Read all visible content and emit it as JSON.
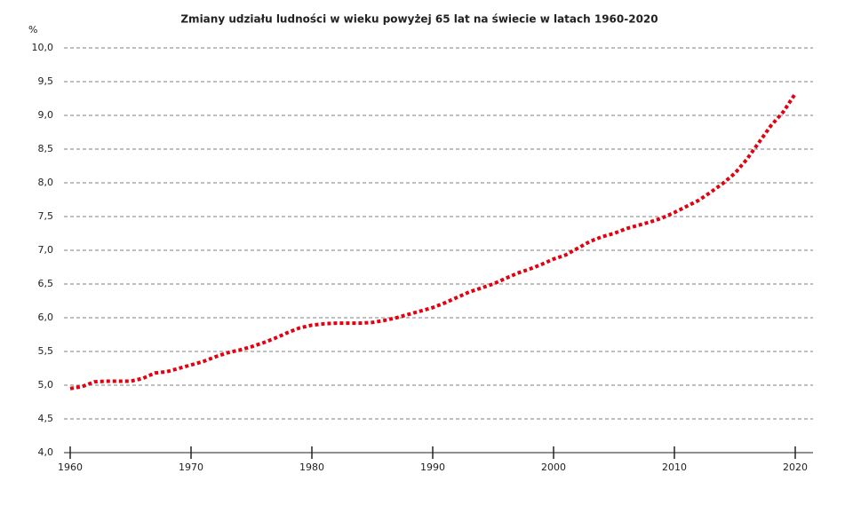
{
  "chart_data": {
    "type": "line",
    "title": "Zmiany udziału ludności w wieku powyżej 65 lat na świecie w latach 1960-2020",
    "y_label": "%",
    "x": [
      1960,
      1961,
      1962,
      1963,
      1964,
      1965,
      1966,
      1967,
      1968,
      1969,
      1970,
      1971,
      1972,
      1973,
      1974,
      1975,
      1976,
      1977,
      1978,
      1979,
      1980,
      1981,
      1982,
      1983,
      1984,
      1985,
      1986,
      1987,
      1988,
      1989,
      1990,
      1991,
      1992,
      1993,
      1994,
      1995,
      1996,
      1997,
      1998,
      1999,
      2000,
      2001,
      2002,
      2003,
      2004,
      2005,
      2006,
      2007,
      2008,
      2009,
      2010,
      2011,
      2012,
      2013,
      2014,
      2015,
      2016,
      2017,
      2018,
      2019,
      2020
    ],
    "series": [
      {
        "color": "#e3000f",
        "values": [
          4.95,
          4.98,
          5.05,
          5.06,
          5.06,
          5.06,
          5.1,
          5.18,
          5.2,
          5.25,
          5.3,
          5.35,
          5.42,
          5.48,
          5.52,
          5.57,
          5.63,
          5.7,
          5.78,
          5.85,
          5.89,
          5.91,
          5.92,
          5.92,
          5.92,
          5.93,
          5.96,
          6.0,
          6.05,
          6.1,
          6.15,
          6.22,
          6.3,
          6.38,
          6.44,
          6.5,
          6.58,
          6.66,
          6.72,
          6.79,
          6.87,
          6.93,
          7.03,
          7.13,
          7.2,
          7.25,
          7.32,
          7.37,
          7.42,
          7.48,
          7.56,
          7.65,
          7.74,
          7.86,
          7.99,
          8.14,
          8.35,
          8.6,
          8.85,
          9.05,
          9.32
        ]
      }
    ],
    "xlim": [
      1960,
      2020
    ],
    "xticks": [
      1960,
      1970,
      1980,
      1990,
      2000,
      2010,
      2020
    ],
    "ylim": [
      4,
      10
    ],
    "yticks": [
      {
        "value": 4,
        "label": "4,0"
      },
      {
        "value": 4.5,
        "label": "4,5"
      },
      {
        "value": 5,
        "label": "5,0"
      },
      {
        "value": 5.5,
        "label": "5,5"
      },
      {
        "value": 6,
        "label": "6,0"
      },
      {
        "value": 6.5,
        "label": "6,5"
      },
      {
        "value": 7,
        "label": "7,0"
      },
      {
        "value": 7.5,
        "label": "7,5"
      },
      {
        "value": 8,
        "label": "8,0"
      },
      {
        "value": 8.5,
        "label": "8,5"
      },
      {
        "value": 9,
        "label": "9,0"
      },
      {
        "value": 9.5,
        "label": "9,5"
      },
      {
        "value": 10,
        "label": "10,0"
      }
    ],
    "grid": true
  }
}
